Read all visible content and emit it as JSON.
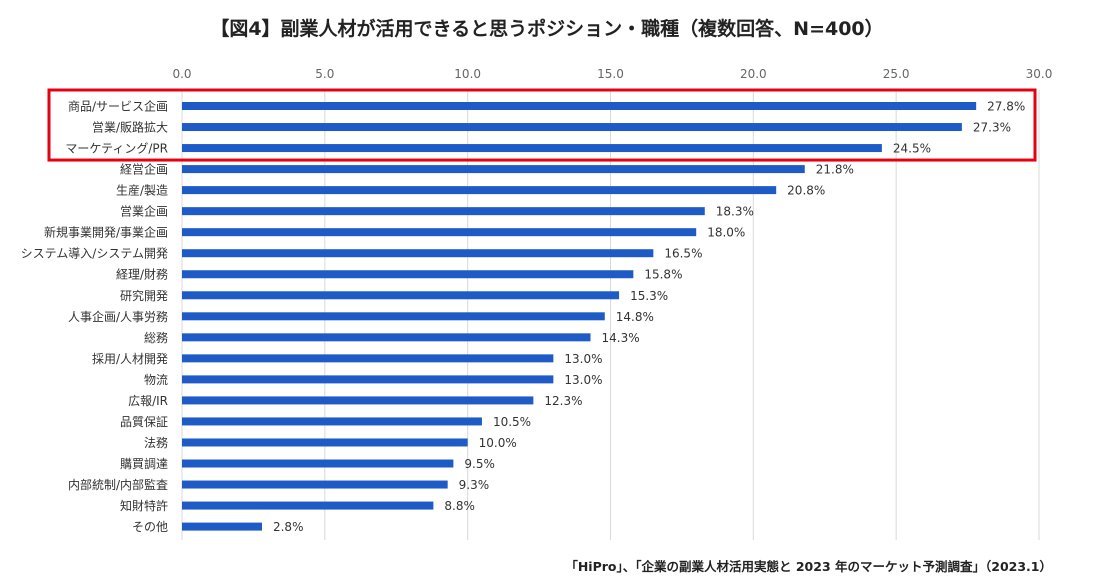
{
  "chart_data": {
    "type": "bar",
    "orientation": "horizontal",
    "title": "【図4】副業人材が活用できると思うポジション・職種（複数回答、N=400）",
    "source": "「HiPro」、「企業の副業人材活用実態と 2023 年のマーケット予測調査」（2023.1）",
    "categories": [
      "商品/サービス企画",
      "営業/販路拡大",
      "マーケティング/PR",
      "経営企画",
      "生産/製造",
      "営業企画",
      "新規事業開発/事業企画",
      "システム導入/システム開発",
      "経理/財務",
      "研究開発",
      "人事企画/人事労務",
      "総務",
      "採用/人材開発",
      "物流",
      "広報/IR",
      "品質保証",
      "法務",
      "購買調達",
      "内部統制/内部監査",
      "知財特許",
      "その他"
    ],
    "values": [
      27.8,
      27.3,
      24.5,
      21.8,
      20.8,
      18.3,
      18.0,
      16.5,
      15.8,
      15.3,
      14.8,
      14.3,
      13.0,
      13.0,
      12.3,
      10.5,
      10.0,
      9.5,
      9.3,
      8.8,
      2.8
    ],
    "value_labels": [
      "27.8%",
      "27.3%",
      "24.5%",
      "21.8%",
      "20.8%",
      "18.3%",
      "18.0%",
      "16.5%",
      "15.8%",
      "15.3%",
      "14.8%",
      "14.3%",
      "13.0%",
      "13.0%",
      "12.3%",
      "10.5%",
      "10.0%",
      "9.5%",
      "9.3%",
      "8.8%",
      "2.8%"
    ],
    "x_ticks": [
      "0.0",
      "5.0",
      "10.0",
      "15.0",
      "20.0",
      "25.0",
      "30.0"
    ],
    "xlim": [
      0,
      30
    ],
    "x_axis_position": "top",
    "grid": true,
    "legend": "none",
    "highlight": {
      "first_index": 0,
      "last_index": 2
    },
    "colors": {
      "bar": "#1f5bc7",
      "grid": "#d9d9d9",
      "highlight_box": "#e60012"
    }
  }
}
